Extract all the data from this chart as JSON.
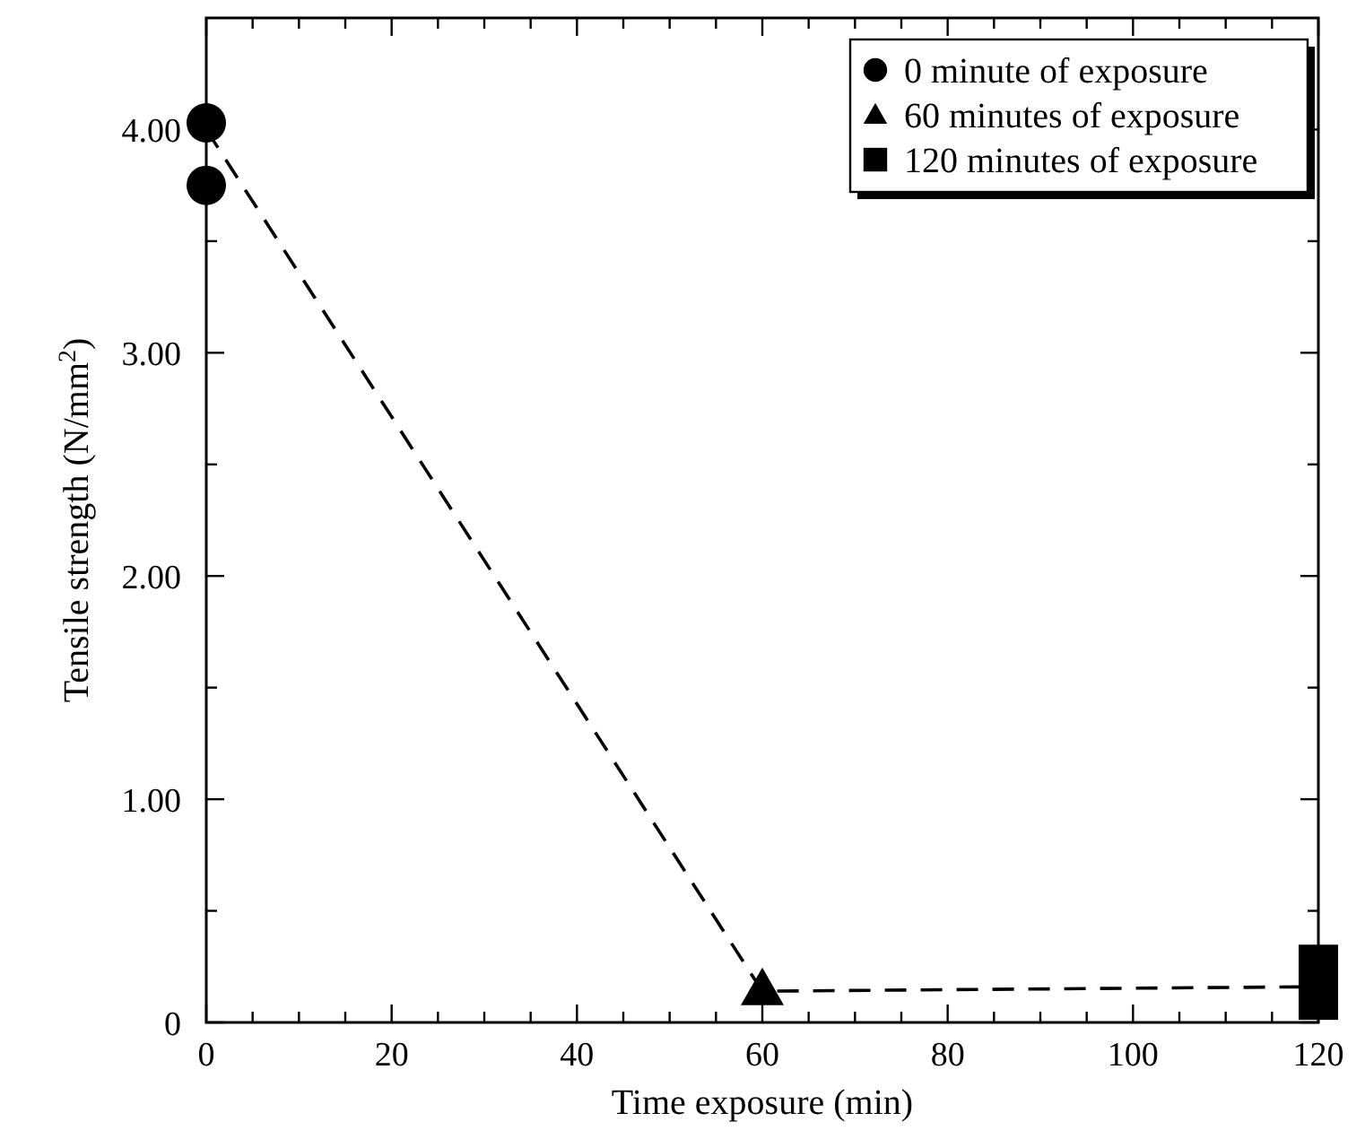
{
  "chart_data": {
    "type": "scatter",
    "xlabel": "Time exposure (min)",
    "ylabel": "Tensile strength (N/mm$^{2}$)",
    "xlim": [
      0,
      120
    ],
    "ylim": [
      0,
      4.5
    ],
    "xticks": [
      0,
      {
        "value": 5,
        "label": null
      },
      {
        "value": 10,
        "label": null
      },
      {
        "value": 15,
        "label": null
      },
      20,
      {
        "value": 25,
        "label": null
      },
      {
        "value": 30,
        "label": null
      },
      {
        "value": 35,
        "label": null
      },
      40,
      {
        "value": 45,
        "label": null
      },
      {
        "value": 50,
        "label": null
      },
      {
        "value": 55,
        "label": null
      },
      60,
      {
        "value": 65,
        "label": null
      },
      {
        "value": 70,
        "label": null
      },
      {
        "value": 75,
        "label": null
      },
      80,
      {
        "value": 85,
        "label": null
      },
      {
        "value": 90,
        "label": null
      },
      {
        "value": 95,
        "label": null
      },
      100,
      {
        "value": 105,
        "label": null
      },
      {
        "value": 110,
        "label": null
      },
      {
        "value": 115,
        "label": null
      },
      120
    ],
    "yticks": [
      0,
      {
        "value": 0.5,
        "label": null
      },
      {
        "value": 1,
        "label": "1.00"
      },
      {
        "value": 1.5,
        "label": null
      },
      {
        "value": 2,
        "label": "2.00"
      },
      {
        "value": 2.5,
        "label": null
      },
      {
        "value": 3,
        "label": "3.00"
      },
      {
        "value": 3.5,
        "label": null
      },
      {
        "value": 4,
        "label": "4.00"
      }
    ],
    "grid": false,
    "legend": "top right",
    "series": [
      {
        "type": "line",
        "line_style": "dashed",
        "marker": "none",
        "color": "#000000",
        "x": [
          0,
          60,
          120
        ],
        "values": [
          4.0,
          0.14,
          0.16
        ]
      },
      {
        "name": "0 minute of exposure",
        "marker": "circle",
        "color": "#000000",
        "x": [
          0,
          0
        ],
        "values": [
          4.03,
          3.75
        ]
      },
      {
        "name": "60 minutes of exposure",
        "marker": "triangle",
        "color": "#000000",
        "x": [
          60
        ],
        "values": [
          0.15
        ]
      },
      {
        "name": "120 minutes of exposure",
        "marker": "square",
        "color": "#000000",
        "x": [
          120,
          120
        ],
        "values": [
          0.26,
          0.1
        ]
      }
    ]
  }
}
